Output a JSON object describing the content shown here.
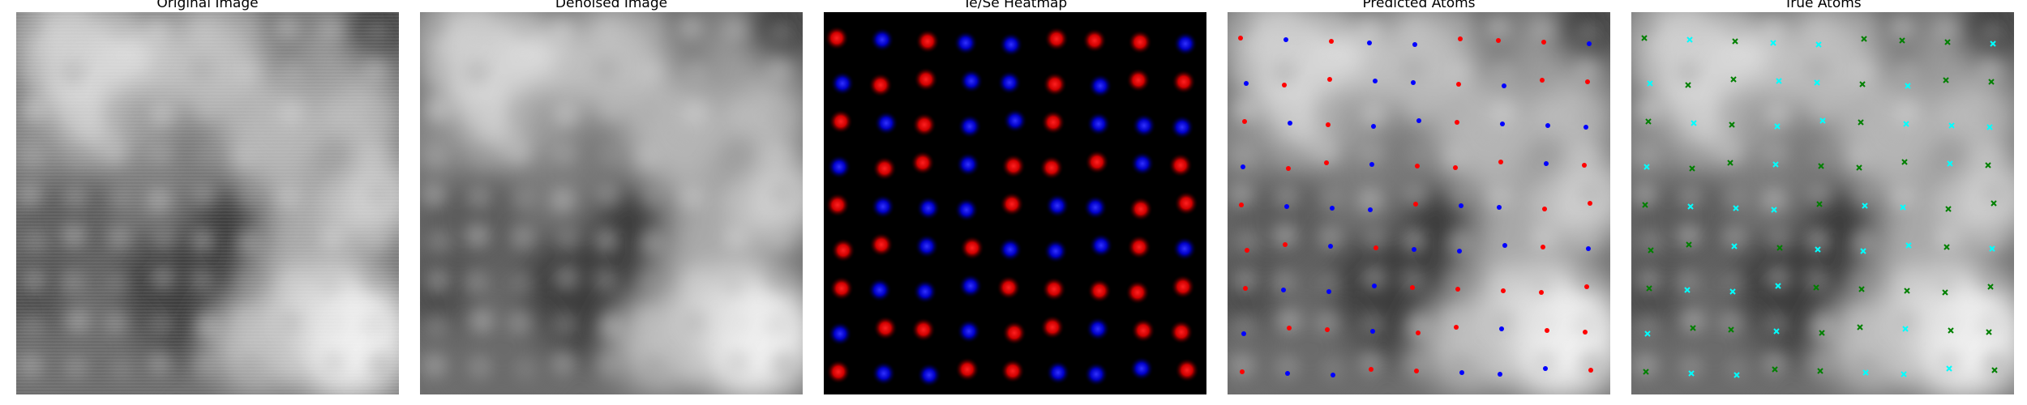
{
  "titles": {
    "original": "Original Image",
    "denoised": "Denoised Image",
    "heatmap": "Te/Se Heatmap",
    "predicted": "Predicted Atoms",
    "true": "True Atoms"
  },
  "colors": {
    "te": "#ff0000",
    "se": "#0000ff",
    "pred_te": "#ff0000",
    "pred_se": "#0000ff",
    "true_a": "#00ffff",
    "true_b": "#008000"
  },
  "atoms_grid": {
    "rows": 9,
    "cols": 9,
    "labels": [
      [
        "te",
        "se",
        "te",
        "se",
        "se",
        "te",
        "te",
        "te",
        "se"
      ],
      [
        "se",
        "te",
        "te",
        "se",
        "se",
        "te",
        "se",
        "te",
        "te"
      ],
      [
        "te",
        "se",
        "te",
        "se",
        "se",
        "te",
        "se",
        "se",
        "se"
      ],
      [
        "se",
        "te",
        "te",
        "se",
        "te",
        "te",
        "te",
        "se",
        "te"
      ],
      [
        "te",
        "se",
        "se",
        "se",
        "te",
        "se",
        "se",
        "te",
        "te"
      ],
      [
        "te",
        "te",
        "se",
        "te",
        "se",
        "se",
        "se",
        "te",
        "se"
      ],
      [
        "te",
        "se",
        "se",
        "se",
        "te",
        "te",
        "te",
        "te",
        "te"
      ],
      [
        "se",
        "te",
        "te",
        "se",
        "te",
        "te",
        "se",
        "te",
        "te"
      ],
      [
        "te",
        "se",
        "se",
        "te",
        "te",
        "se",
        "se",
        "se",
        "te"
      ]
    ]
  },
  "true_grid": {
    "labels": [
      [
        "b",
        "a",
        "b",
        "a",
        "a",
        "b",
        "b",
        "b",
        "a"
      ],
      [
        "a",
        "b",
        "b",
        "a",
        "a",
        "b",
        "a",
        "b",
        "b"
      ],
      [
        "b",
        "a",
        "b",
        "a",
        "a",
        "b",
        "a",
        "a",
        "a"
      ],
      [
        "a",
        "b",
        "b",
        "a",
        "b",
        "b",
        "b",
        "a",
        "b"
      ],
      [
        "b",
        "a",
        "a",
        "a",
        "b",
        "a",
        "a",
        "b",
        "b"
      ],
      [
        "b",
        "b",
        "a",
        "b",
        "a",
        "a",
        "a",
        "b",
        "a"
      ],
      [
        "b",
        "a",
        "a",
        "a",
        "b",
        "b",
        "b",
        "b",
        "b"
      ],
      [
        "a",
        "b",
        "b",
        "a",
        "b",
        "b",
        "a",
        "b",
        "b"
      ],
      [
        "b",
        "a",
        "a",
        "b",
        "b",
        "a",
        "a",
        "a",
        "b"
      ]
    ]
  }
}
